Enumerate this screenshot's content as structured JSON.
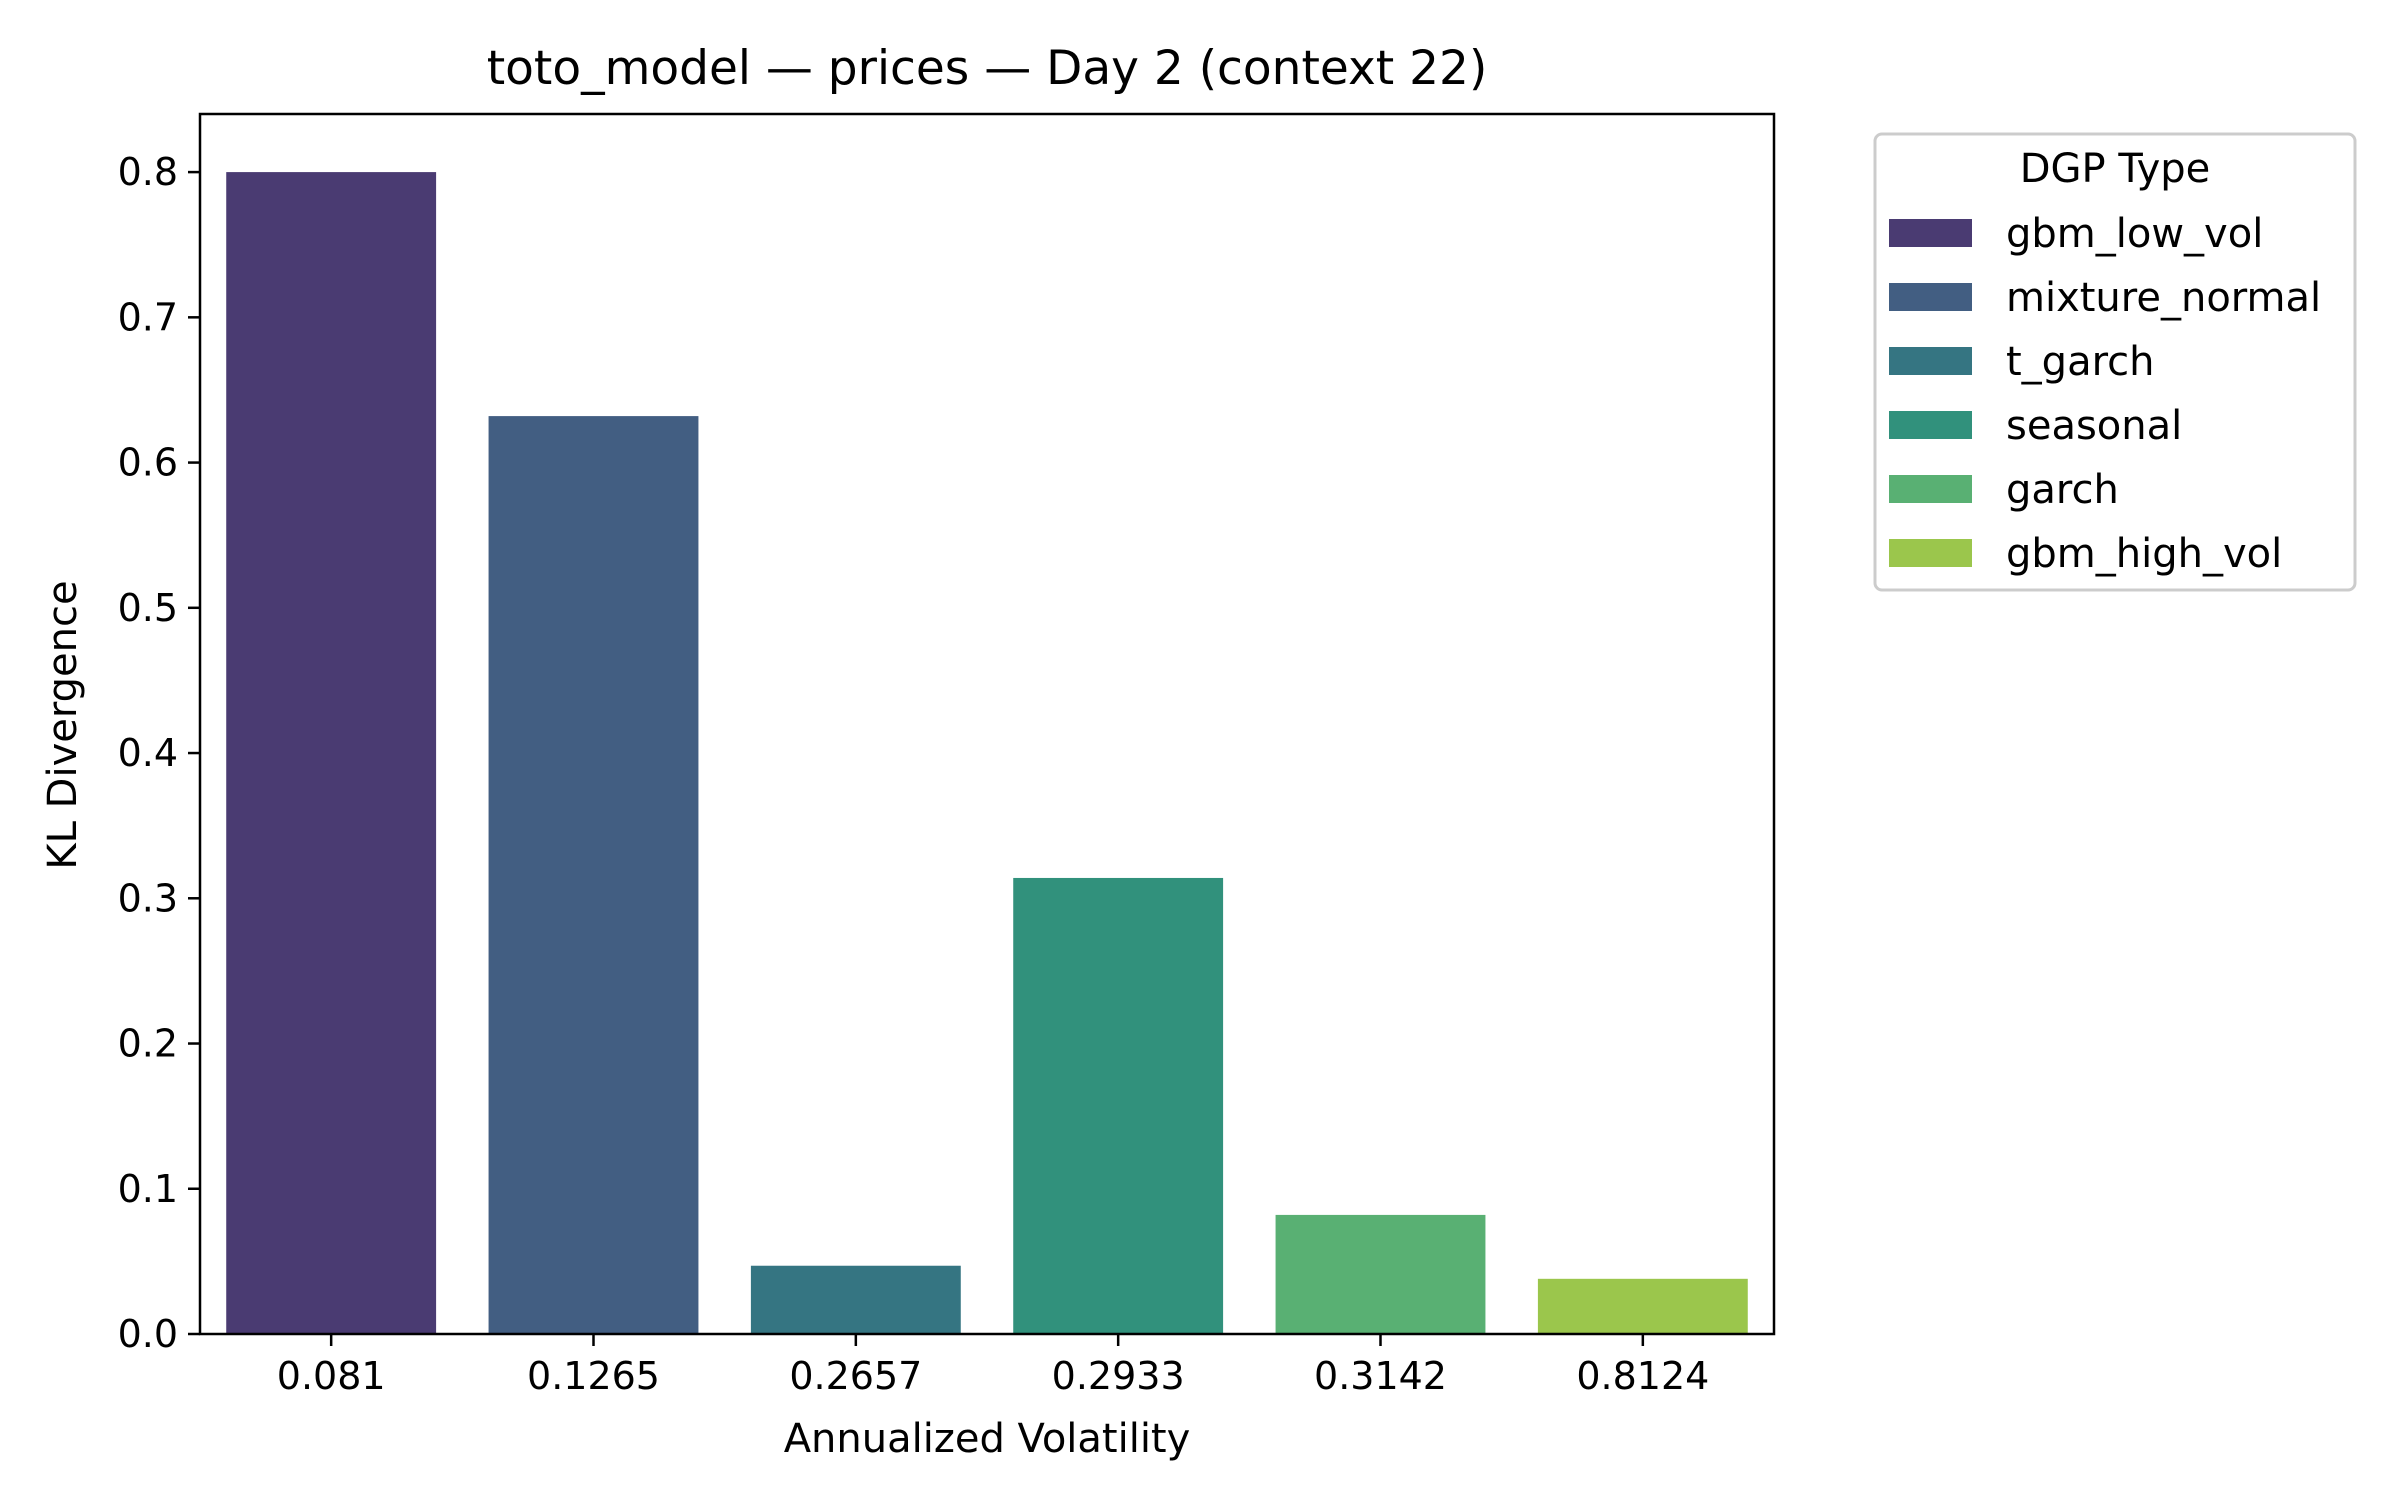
{
  "chart_data": {
    "type": "bar",
    "title": "toto_model — prices — Day 2 (context 22)",
    "xlabel": "Annualized Volatility",
    "ylabel": "KL Divergence",
    "categories": [
      "0.081",
      "0.1265",
      "0.2657",
      "0.2933",
      "0.3142",
      "0.8124"
    ],
    "values": [
      0.8,
      0.632,
      0.047,
      0.314,
      0.082,
      0.038
    ],
    "bar_dgp": [
      "gbm_low_vol",
      "mixture_normal",
      "t_garch",
      "seasonal",
      "garch",
      "gbm_high_vol"
    ],
    "ylim": [
      0,
      0.84
    ],
    "yticks": [
      0.0,
      0.1,
      0.2,
      0.3,
      0.4,
      0.5,
      0.6,
      0.7,
      0.8
    ],
    "ytick_labels": [
      "0.0",
      "0.1",
      "0.2",
      "0.3",
      "0.4",
      "0.5",
      "0.6",
      "0.7",
      "0.8"
    ],
    "grid": false,
    "legend": {
      "title": "DGP Type",
      "placement": "outside-top-right",
      "entries": [
        {
          "name": "gbm_low_vol",
          "color": "#4a3b72"
        },
        {
          "name": "mixture_normal",
          "color": "#425e82"
        },
        {
          "name": "t_garch",
          "color": "#357582"
        },
        {
          "name": "seasonal",
          "color": "#31917c"
        },
        {
          "name": "garch",
          "color": "#59b073"
        },
        {
          "name": "gbm_high_vol",
          "color": "#9bc64c"
        }
      ]
    }
  }
}
